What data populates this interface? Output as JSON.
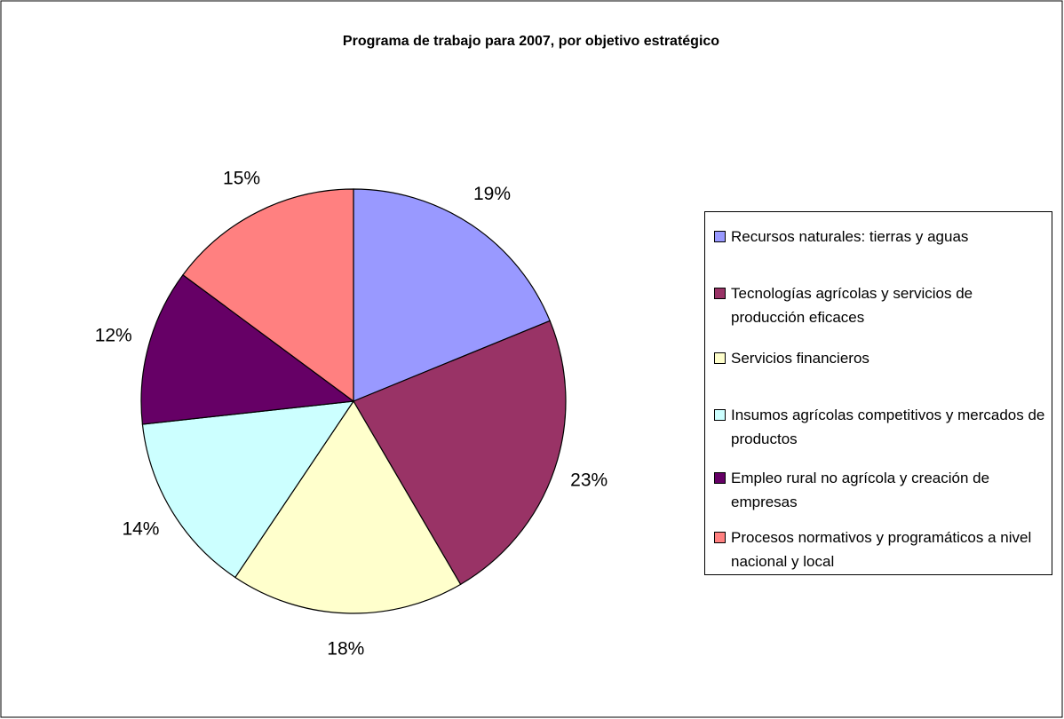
{
  "chart_data": {
    "type": "pie",
    "title": "Programa de trabajo para 2007, por objetivo estratégico",
    "categories": [
      "Recursos naturales: tierras y aguas",
      "Tecnologías agrícolas y servicios de producción eficaces",
      "Servicios financieros",
      "Insumos agrícolas competitivos y mercados de productos",
      "Empleo rural no agrícola y creación de empresas",
      "Procesos normativos y programáticos a nivel nacional y local"
    ],
    "values": [
      19,
      23,
      18,
      14,
      12,
      15
    ],
    "value_labels": [
      "19%",
      "23%",
      "18%",
      "14%",
      "12%",
      "15%"
    ],
    "colors": [
      "#9999ff",
      "#993366",
      "#ffffcc",
      "#ccffff",
      "#660066",
      "#ff8080"
    ],
    "legend": "right"
  }
}
